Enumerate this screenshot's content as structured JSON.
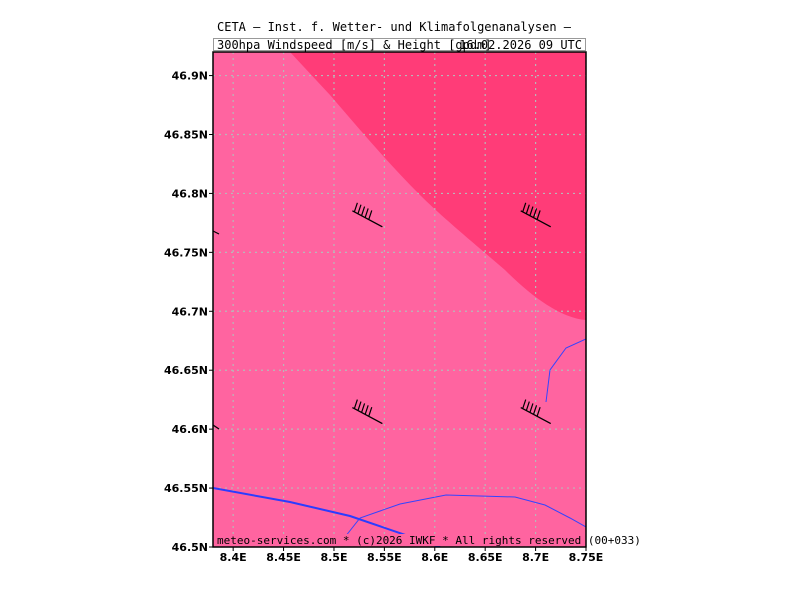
{
  "header": {
    "title": "CETA – Inst. f. Wetter- und Klimafolgenanalysen –",
    "subtitle": "300hpa_Windspeed_[m/s]_&_Height_[gpdm]",
    "valid_time": "16.02.2026 09 UTC"
  },
  "footer": {
    "credit": "meteo-services.com * (c)2026 IWKF * All rights reserved (00+033)"
  },
  "map": {
    "lon_range": [
      8.38,
      8.75
    ],
    "lat_range": [
      46.5,
      46.92
    ],
    "lon_ticks": [
      "8.4E",
      "8.45E",
      "8.5E",
      "8.55E",
      "8.6E",
      "8.65E",
      "8.7E",
      "8.75E"
    ],
    "lat_ticks": [
      "46.5N",
      "46.55N",
      "46.6N",
      "46.65N",
      "46.7N",
      "46.75N",
      "46.8N",
      "46.85N",
      "46.9N"
    ],
    "colors": {
      "windspeed_band_1": "#ff64a0",
      "windspeed_band_2": "#ff3c78",
      "grid": "#b8b8b8",
      "boundary": "#2b3cff",
      "barb": "#000000"
    },
    "wind_barbs": [
      {
        "id": "nw",
        "lon": 8.55,
        "lat": 46.77
      },
      {
        "id": "ne",
        "lon": 8.717,
        "lat": 46.77
      },
      {
        "id": "sw",
        "lon": 8.55,
        "lat": 46.603
      },
      {
        "id": "se",
        "lon": 8.717,
        "lat": 46.603
      }
    ]
  }
}
